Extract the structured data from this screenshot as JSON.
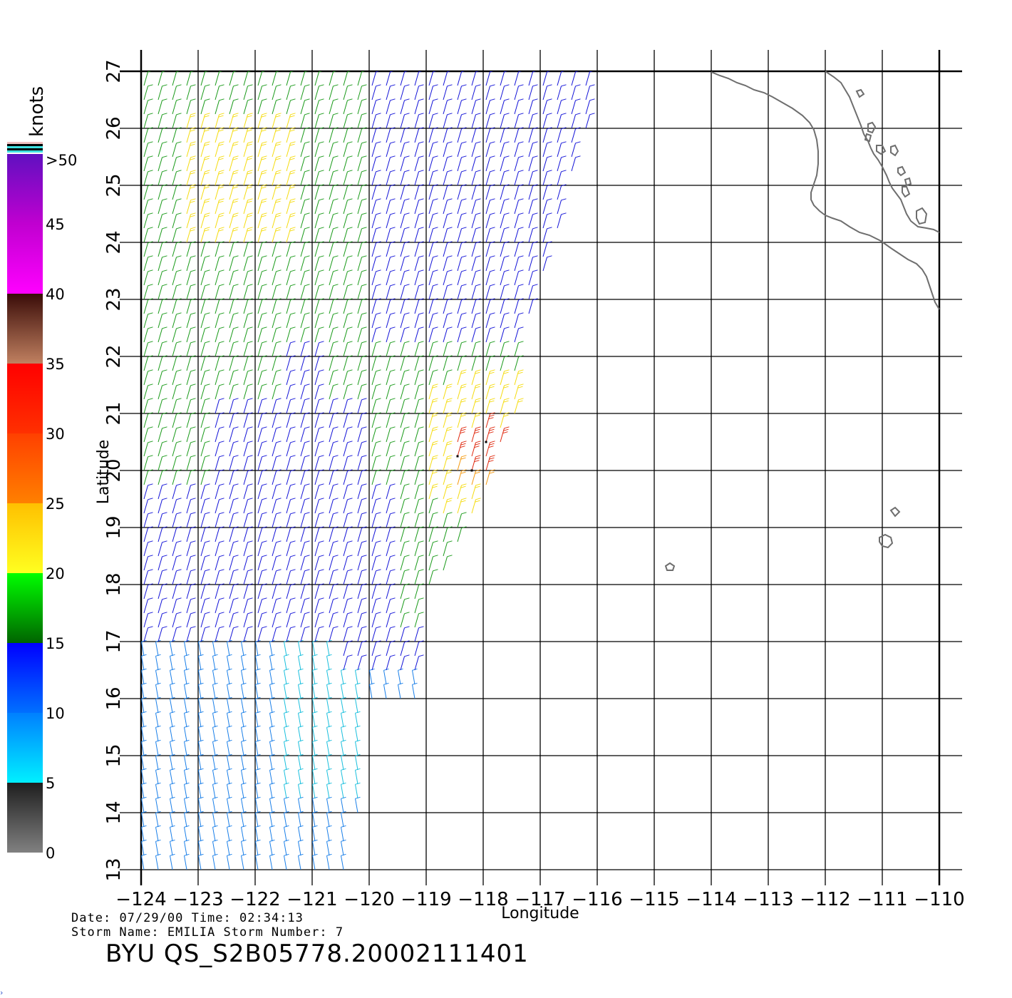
{
  "map": {
    "lon_range": [
      -124,
      -110
    ],
    "lat_range": [
      13,
      27
    ],
    "x_ticks": [
      "-124",
      "-123",
      "-122",
      "-121",
      "-120",
      "-119",
      "-118",
      "-117",
      "-116",
      "-115",
      "-114",
      "-113",
      "-112",
      "-111",
      "-110"
    ],
    "y_ticks": [
      "13",
      "14",
      "15",
      "16",
      "17",
      "18",
      "19",
      "20",
      "21",
      "22",
      "23",
      "24",
      "25",
      "26",
      "27"
    ],
    "xlabel": "Longitude",
    "ylabel": "Latitude",
    "grid": true,
    "coastline_color": "#6e6e6e"
  },
  "legend": {
    "title": "knots",
    "labels": [
      "0",
      "5",
      "10",
      "15",
      "20",
      "25",
      "30",
      "35",
      "40",
      "45",
      ">50"
    ],
    "bands": [
      {
        "from": 0,
        "to": 5,
        "colors": [
          "#808080",
          "#1e1e1e"
        ]
      },
      {
        "from": 5,
        "to": 10,
        "colors": [
          "#00f0ff",
          "#0080ff"
        ]
      },
      {
        "from": 10,
        "to": 15,
        "colors": [
          "#0070ff",
          "#0000ff"
        ]
      },
      {
        "from": 15,
        "to": 20,
        "colors": [
          "#006400",
          "#00ff00"
        ]
      },
      {
        "from": 20,
        "to": 25,
        "colors": [
          "#ffff20",
          "#ffc000"
        ]
      },
      {
        "from": 25,
        "to": 30,
        "colors": [
          "#ff8000",
          "#ff4000"
        ]
      },
      {
        "from": 30,
        "to": 35,
        "colors": [
          "#ff3000",
          "#ff0000"
        ]
      },
      {
        "from": 35,
        "to": 40,
        "colors": [
          "#c08060",
          "#3a0c08"
        ]
      },
      {
        "from": 40,
        "to": 45,
        "colors": [
          "#ff00ff",
          "#c000d0"
        ]
      },
      {
        "from": 45,
        "to": 50,
        "colors": [
          "#c000d0",
          "#6010c0"
        ]
      }
    ]
  },
  "info": {
    "date_label": "Date:",
    "date": "07/29/00",
    "time_label": "Time:",
    "time": "02:34:13",
    "storm_name_label": "Storm Name:",
    "storm_name": "EMILIA",
    "storm_number_label": "Storm Number:",
    "storm_number": "7",
    "file_title": "BYU  QS_S2B05778.20002111401"
  },
  "wind_colors": {
    "cyan": "#19bfdd",
    "light_blue": "#1a7fe8",
    "blue": "#1414d8",
    "green": "#1a9a1a",
    "yellow": "#f5dc10",
    "orange": "#f59a10",
    "red": "#e02a10",
    "black": "#000000"
  }
}
